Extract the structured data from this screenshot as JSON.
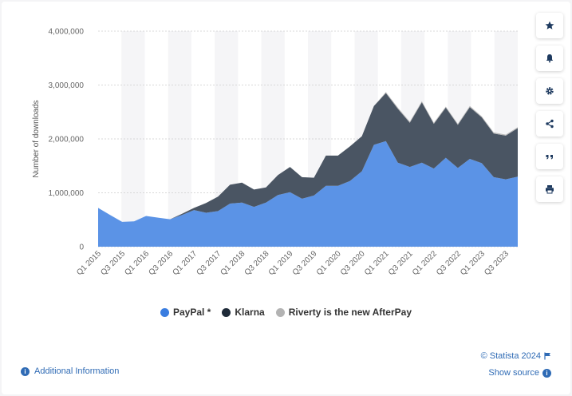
{
  "chart_data": {
    "type": "area",
    "stacked": true,
    "title": "",
    "xlabel": "",
    "ylabel": "Number of downloads",
    "ylim": [
      0,
      4000000
    ],
    "yticks": [
      "0",
      "1,000,000",
      "2,000,000",
      "3,000,000",
      "4,000,000"
    ],
    "ytick_values": [
      0,
      1000000,
      2000000,
      3000000,
      4000000
    ],
    "grid": true,
    "legend_position": "bottom",
    "categories": [
      "Q1 2015",
      "Q2 2015",
      "Q3 2015",
      "Q4 2015",
      "Q1 2016",
      "Q2 2016",
      "Q3 2016",
      "Q4 2016",
      "Q1 2017",
      "Q2 2017",
      "Q3 2017",
      "Q4 2017",
      "Q1 2018",
      "Q2 2018",
      "Q3 2018",
      "Q4 2018",
      "Q1 2019",
      "Q2 2019",
      "Q3 2019",
      "Q4 2019",
      "Q1 2020",
      "Q2 2020",
      "Q3 2020",
      "Q4 2020",
      "Q1 2021",
      "Q2 2021",
      "Q3 2021",
      "Q4 2021",
      "Q1 2022",
      "Q2 2022",
      "Q3 2022",
      "Q4 2022",
      "Q1 2023",
      "Q2 2023",
      "Q3 2023",
      "Q4 2023"
    ],
    "x_tick_labels": [
      "Q1 2015",
      "Q3 2015",
      "Q1 2016",
      "Q3 2016",
      "Q1 2017",
      "Q3 2017",
      "Q1 2018",
      "Q3 2018",
      "Q1 2019",
      "Q3 2019",
      "Q1 2020",
      "Q3 2020",
      "Q1 2021",
      "Q3 2021",
      "Q1 2022",
      "Q3 2022",
      "Q1 2023",
      "Q3 2023"
    ],
    "series": [
      {
        "name": "PayPal *",
        "color": "#5b93e6",
        "values": [
          720000,
          590000,
          460000,
          470000,
          570000,
          540000,
          510000,
          590000,
          680000,
          630000,
          660000,
          800000,
          820000,
          740000,
          820000,
          960000,
          1010000,
          890000,
          950000,
          1130000,
          1130000,
          1220000,
          1400000,
          1890000,
          1960000,
          1560000,
          1480000,
          1560000,
          1450000,
          1650000,
          1460000,
          1630000,
          1550000,
          1290000,
          1250000,
          1300000
        ]
      },
      {
        "name": "Klarna",
        "color": "#4a5563",
        "values": [
          0,
          0,
          0,
          0,
          0,
          0,
          0,
          20000,
          40000,
          180000,
          270000,
          350000,
          370000,
          320000,
          280000,
          370000,
          470000,
          400000,
          330000,
          560000,
          560000,
          640000,
          650000,
          720000,
          890000,
          1000000,
          820000,
          1120000,
          830000,
          930000,
          800000,
          960000,
          850000,
          810000,
          810000,
          900000
        ]
      },
      {
        "name": "Riverty is the new AfterPay",
        "color": "#b8b8b8",
        "values": [
          0,
          0,
          0,
          0,
          0,
          0,
          0,
          0,
          0,
          0,
          0,
          0,
          0,
          0,
          0,
          0,
          0,
          0,
          0,
          0,
          0,
          0,
          0,
          0,
          20000,
          20000,
          20000,
          20000,
          20000,
          20000,
          20000,
          20000,
          20000,
          20000,
          20000,
          20000
        ]
      }
    ]
  },
  "legend": {
    "items": [
      {
        "label": "PayPal *",
        "color": "#3a7de0"
      },
      {
        "label": "Klarna",
        "color": "#1e2a38"
      },
      {
        "label": "Riverty is the new AfterPay",
        "color": "#b3b3b3"
      }
    ]
  },
  "toolbar": {
    "icons": [
      "star-icon",
      "bell-icon",
      "gear-icon",
      "share-icon",
      "quote-icon",
      "print-icon"
    ]
  },
  "footer": {
    "credit": "© Statista 2024",
    "show_source": "Show source",
    "additional_info": "Additional Information"
  }
}
